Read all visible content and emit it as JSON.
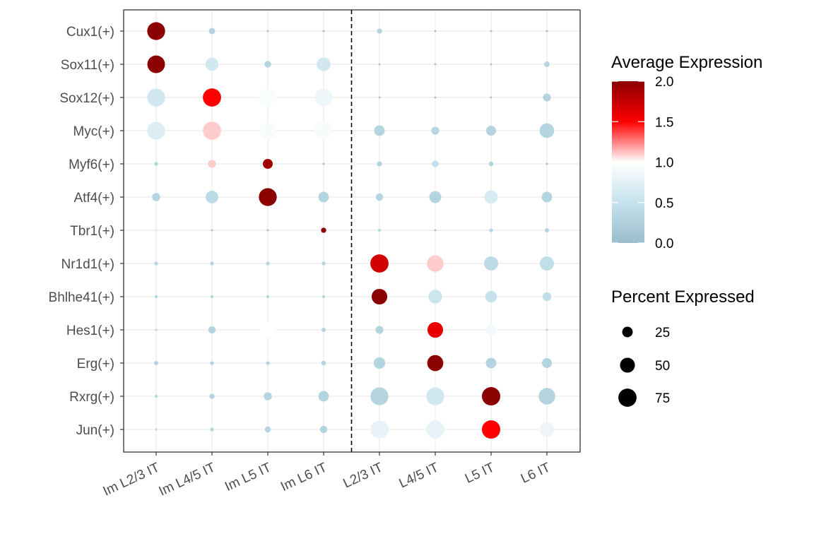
{
  "chart_data": {
    "type": "dotplot",
    "x_categories": [
      "Im L2/3 IT",
      "Im L4/5 IT",
      "Im L5 IT",
      "Im L6 IT",
      "L2/3 IT",
      "L4/5 IT",
      "L5 IT",
      "L6 IT"
    ],
    "y_categories": [
      "Cux1(+)",
      "Sox11(+)",
      "Sox12(+)",
      "Myc(+)",
      "Myf6(+)",
      "Atf4(+)",
      "Tbr1(+)",
      "Nr1d1(+)",
      "Bhlhe41(+)",
      "Hes1(+)",
      "Erg(+)",
      "Rxrg(+)",
      "Jun(+)"
    ],
    "divider_after_index": 3,
    "divider_style": "dashed",
    "grid": true,
    "points": [
      {
        "gene": "Cux1(+)",
        "cluster": "Im L2/3 IT",
        "avg_exp": 2.0,
        "pct": 72
      },
      {
        "gene": "Cux1(+)",
        "cluster": "Im L4/5 IT",
        "avg_exp": 0.3,
        "pct": 9
      },
      {
        "gene": "Cux1(+)",
        "cluster": "Im L5 IT",
        "avg_exp": 0.1,
        "pct": 1
      },
      {
        "gene": "Cux1(+)",
        "cluster": "Im L6 IT",
        "avg_exp": 0.1,
        "pct": 1
      },
      {
        "gene": "Cux1(+)",
        "cluster": "L2/3 IT",
        "avg_exp": 0.3,
        "pct": 6
      },
      {
        "gene": "Cux1(+)",
        "cluster": "L4/5 IT",
        "avg_exp": 0.1,
        "pct": 1
      },
      {
        "gene": "Cux1(+)",
        "cluster": "L5 IT",
        "avg_exp": 0.1,
        "pct": 1
      },
      {
        "gene": "Cux1(+)",
        "cluster": "L6 IT",
        "avg_exp": 0.1,
        "pct": 1
      },
      {
        "gene": "Sox11(+)",
        "cluster": "Im L2/3 IT",
        "avg_exp": 2.0,
        "pct": 70
      },
      {
        "gene": "Sox11(+)",
        "cluster": "Im L4/5 IT",
        "avg_exp": 0.6,
        "pct": 38
      },
      {
        "gene": "Sox11(+)",
        "cluster": "Im L5 IT",
        "avg_exp": 0.3,
        "pct": 10
      },
      {
        "gene": "Sox11(+)",
        "cluster": "Im L6 IT",
        "avg_exp": 0.6,
        "pct": 43
      },
      {
        "gene": "Sox11(+)",
        "cluster": "L2/3 IT",
        "avg_exp": 0.1,
        "pct": 1
      },
      {
        "gene": "Sox11(+)",
        "cluster": "L4/5 IT",
        "avg_exp": 0.1,
        "pct": 1
      },
      {
        "gene": "Sox11(+)",
        "cluster": "L5 IT",
        "avg_exp": 0.1,
        "pct": 1
      },
      {
        "gene": "Sox11(+)",
        "cluster": "L6 IT",
        "avg_exp": 0.3,
        "pct": 7
      },
      {
        "gene": "Sox12(+)",
        "cluster": "Im L2/3 IT",
        "avg_exp": 0.6,
        "pct": 72
      },
      {
        "gene": "Sox12(+)",
        "cluster": "Im L4/5 IT",
        "avg_exp": 1.5,
        "pct": 75
      },
      {
        "gene": "Sox12(+)",
        "cluster": "Im L5 IT",
        "avg_exp": 0.95,
        "pct": 65
      },
      {
        "gene": "Sox12(+)",
        "cluster": "Im L6 IT",
        "avg_exp": 0.85,
        "pct": 70
      },
      {
        "gene": "Sox12(+)",
        "cluster": "L2/3 IT",
        "avg_exp": 0.1,
        "pct": 1
      },
      {
        "gene": "Sox12(+)",
        "cluster": "L4/5 IT",
        "avg_exp": 0.1,
        "pct": 1
      },
      {
        "gene": "Sox12(+)",
        "cluster": "L5 IT",
        "avg_exp": 0.1,
        "pct": 1
      },
      {
        "gene": "Sox12(+)",
        "cluster": "L6 IT",
        "avg_exp": 0.3,
        "pct": 14
      },
      {
        "gene": "Myc(+)",
        "cluster": "Im L2/3 IT",
        "avg_exp": 0.7,
        "pct": 72
      },
      {
        "gene": "Myc(+)",
        "cluster": "Im L4/5 IT",
        "avg_exp": 1.1,
        "pct": 75
      },
      {
        "gene": "Myc(+)",
        "cluster": "Im L5 IT",
        "avg_exp": 0.93,
        "pct": 65
      },
      {
        "gene": "Myc(+)",
        "cluster": "Im L6 IT",
        "avg_exp": 0.93,
        "pct": 70
      },
      {
        "gene": "Myc(+)",
        "cluster": "L2/3 IT",
        "avg_exp": 0.3,
        "pct": 25
      },
      {
        "gene": "Myc(+)",
        "cluster": "L4/5 IT",
        "avg_exp": 0.3,
        "pct": 14
      },
      {
        "gene": "Myc(+)",
        "cluster": "L5 IT",
        "avg_exp": 0.3,
        "pct": 22
      },
      {
        "gene": "Myc(+)",
        "cluster": "L6 IT",
        "avg_exp": 0.3,
        "pct": 48
      },
      {
        "gene": "Myf6(+)",
        "cluster": "Im L2/3 IT",
        "avg_exp": 0.3,
        "pct": 3
      },
      {
        "gene": "Myf6(+)",
        "cluster": "Im L4/5 IT",
        "avg_exp": 1.1,
        "pct": 14
      },
      {
        "gene": "Myf6(+)",
        "cluster": "Im L5 IT",
        "avg_exp": 1.9,
        "pct": 22
      },
      {
        "gene": "Myf6(+)",
        "cluster": "Im L6 IT",
        "avg_exp": 0.1,
        "pct": 1
      },
      {
        "gene": "Myf6(+)",
        "cluster": "L2/3 IT",
        "avg_exp": 0.3,
        "pct": 6
      },
      {
        "gene": "Myf6(+)",
        "cluster": "L4/5 IT",
        "avg_exp": 0.5,
        "pct": 10
      },
      {
        "gene": "Myf6(+)",
        "cluster": "L5 IT",
        "avg_exp": 0.3,
        "pct": 5
      },
      {
        "gene": "Myf6(+)",
        "cluster": "L6 IT",
        "avg_exp": 0.1,
        "pct": 1
      },
      {
        "gene": "Atf4(+)",
        "cluster": "Im L2/3 IT",
        "avg_exp": 0.3,
        "pct": 15
      },
      {
        "gene": "Atf4(+)",
        "cluster": "Im L4/5 IT",
        "avg_exp": 0.4,
        "pct": 36
      },
      {
        "gene": "Atf4(+)",
        "cluster": "Im L5 IT",
        "avg_exp": 2.0,
        "pct": 72
      },
      {
        "gene": "Atf4(+)",
        "cluster": "Im L6 IT",
        "avg_exp": 0.3,
        "pct": 25
      },
      {
        "gene": "Atf4(+)",
        "cluster": "L2/3 IT",
        "avg_exp": 0.3,
        "pct": 12
      },
      {
        "gene": "Atf4(+)",
        "cluster": "L4/5 IT",
        "avg_exp": 0.3,
        "pct": 32
      },
      {
        "gene": "Atf4(+)",
        "cluster": "L5 IT",
        "avg_exp": 0.65,
        "pct": 40
      },
      {
        "gene": "Atf4(+)",
        "cluster": "L6 IT",
        "avg_exp": 0.3,
        "pct": 25
      },
      {
        "gene": "Tbr1(+)",
        "cluster": "Im L2/3 IT",
        "avg_exp": 0.6,
        "pct": 1
      },
      {
        "gene": "Tbr1(+)",
        "cluster": "Im L4/5 IT",
        "avg_exp": 0.1,
        "pct": 1
      },
      {
        "gene": "Tbr1(+)",
        "cluster": "Im L5 IT",
        "avg_exp": 0.1,
        "pct": 1
      },
      {
        "gene": "Tbr1(+)",
        "cluster": "Im L6 IT",
        "avg_exp": 2.0,
        "pct": 6
      },
      {
        "gene": "Tbr1(+)",
        "cluster": "L2/3 IT",
        "avg_exp": 0.3,
        "pct": 2
      },
      {
        "gene": "Tbr1(+)",
        "cluster": "L4/5 IT",
        "avg_exp": 0.1,
        "pct": 1
      },
      {
        "gene": "Tbr1(+)",
        "cluster": "L5 IT",
        "avg_exp": 0.3,
        "pct": 3
      },
      {
        "gene": "Tbr1(+)",
        "cluster": "L6 IT",
        "avg_exp": 0.3,
        "pct": 4
      },
      {
        "gene": "Nr1d1(+)",
        "cluster": "Im L2/3 IT",
        "avg_exp": 0.3,
        "pct": 3
      },
      {
        "gene": "Nr1d1(+)",
        "cluster": "Im L4/5 IT",
        "avg_exp": 0.3,
        "pct": 3
      },
      {
        "gene": "Nr1d1(+)",
        "cluster": "Im L5 IT",
        "avg_exp": 0.3,
        "pct": 3
      },
      {
        "gene": "Nr1d1(+)",
        "cluster": "Im L6 IT",
        "avg_exp": 0.3,
        "pct": 3
      },
      {
        "gene": "Nr1d1(+)",
        "cluster": "L2/3 IT",
        "avg_exp": 1.7,
        "pct": 75
      },
      {
        "gene": "Nr1d1(+)",
        "cluster": "L4/5 IT",
        "avg_exp": 1.1,
        "pct": 62
      },
      {
        "gene": "Nr1d1(+)",
        "cluster": "L5 IT",
        "avg_exp": 0.4,
        "pct": 45
      },
      {
        "gene": "Nr1d1(+)",
        "cluster": "L6 IT",
        "avg_exp": 0.45,
        "pct": 45
      },
      {
        "gene": "Bhlhe41(+)",
        "cluster": "Im L2/3 IT",
        "avg_exp": 0.3,
        "pct": 2
      },
      {
        "gene": "Bhlhe41(+)",
        "cluster": "Im L4/5 IT",
        "avg_exp": 0.3,
        "pct": 2
      },
      {
        "gene": "Bhlhe41(+)",
        "cluster": "Im L5 IT",
        "avg_exp": 0.3,
        "pct": 2
      },
      {
        "gene": "Bhlhe41(+)",
        "cluster": "Im L6 IT",
        "avg_exp": 0.3,
        "pct": 2
      },
      {
        "gene": "Bhlhe41(+)",
        "cluster": "L2/3 IT",
        "avg_exp": 2.0,
        "pct": 55
      },
      {
        "gene": "Bhlhe41(+)",
        "cluster": "L4/5 IT",
        "avg_exp": 0.55,
        "pct": 42
      },
      {
        "gene": "Bhlhe41(+)",
        "cluster": "L5 IT",
        "avg_exp": 0.5,
        "pct": 30
      },
      {
        "gene": "Bhlhe41(+)",
        "cluster": "L6 IT",
        "avg_exp": 0.45,
        "pct": 17
      },
      {
        "gene": "Hes1(+)",
        "cluster": "Im L2/3 IT",
        "avg_exp": 0.3,
        "pct": 1
      },
      {
        "gene": "Hes1(+)",
        "cluster": "Im L4/5 IT",
        "avg_exp": 0.3,
        "pct": 12
      },
      {
        "gene": "Hes1(+)",
        "cluster": "Im L5 IT",
        "avg_exp": 1.0,
        "pct": 55
      },
      {
        "gene": "Hes1(+)",
        "cluster": "Im L6 IT",
        "avg_exp": 0.3,
        "pct": 4
      },
      {
        "gene": "Hes1(+)",
        "cluster": "L2/3 IT",
        "avg_exp": 0.3,
        "pct": 14
      },
      {
        "gene": "Hes1(+)",
        "cluster": "L4/5 IT",
        "avg_exp": 1.6,
        "pct": 55
      },
      {
        "gene": "Hes1(+)",
        "cluster": "L5 IT",
        "avg_exp": 0.9,
        "pct": 25
      },
      {
        "gene": "Hes1(+)",
        "cluster": "L6 IT",
        "avg_exp": 0.3,
        "pct": 1
      },
      {
        "gene": "Erg(+)",
        "cluster": "Im L2/3 IT",
        "avg_exp": 0.3,
        "pct": 4
      },
      {
        "gene": "Erg(+)",
        "cluster": "Im L4/5 IT",
        "avg_exp": 0.3,
        "pct": 3
      },
      {
        "gene": "Erg(+)",
        "cluster": "Im L5 IT",
        "avg_exp": 0.3,
        "pct": 3
      },
      {
        "gene": "Erg(+)",
        "cluster": "Im L6 IT",
        "avg_exp": 0.3,
        "pct": 5
      },
      {
        "gene": "Erg(+)",
        "cluster": "L2/3 IT",
        "avg_exp": 0.3,
        "pct": 30
      },
      {
        "gene": "Erg(+)",
        "cluster": "L4/5 IT",
        "avg_exp": 2.0,
        "pct": 58
      },
      {
        "gene": "Erg(+)",
        "cluster": "L5 IT",
        "avg_exp": 0.3,
        "pct": 25
      },
      {
        "gene": "Erg(+)",
        "cluster": "L6 IT",
        "avg_exp": 0.3,
        "pct": 22
      },
      {
        "gene": "Rxrg(+)",
        "cluster": "Im L2/3 IT",
        "avg_exp": 0.3,
        "pct": 2
      },
      {
        "gene": "Rxrg(+)",
        "cluster": "Im L4/5 IT",
        "avg_exp": 0.3,
        "pct": 6
      },
      {
        "gene": "Rxrg(+)",
        "cluster": "Im L5 IT",
        "avg_exp": 0.3,
        "pct": 15
      },
      {
        "gene": "Rxrg(+)",
        "cluster": "Im L6 IT",
        "avg_exp": 0.3,
        "pct": 25
      },
      {
        "gene": "Rxrg(+)",
        "cluster": "L2/3 IT",
        "avg_exp": 0.3,
        "pct": 72
      },
      {
        "gene": "Rxrg(+)",
        "cluster": "L4/5 IT",
        "avg_exp": 0.6,
        "pct": 72
      },
      {
        "gene": "Rxrg(+)",
        "cluster": "L5 IT",
        "avg_exp": 2.0,
        "pct": 76
      },
      {
        "gene": "Rxrg(+)",
        "cluster": "L6 IT",
        "avg_exp": 0.3,
        "pct": 62
      },
      {
        "gene": "Jun(+)",
        "cluster": "Im L2/3 IT",
        "avg_exp": 0.3,
        "pct": 1
      },
      {
        "gene": "Jun(+)",
        "cluster": "Im L4/5 IT",
        "avg_exp": 0.3,
        "pct": 3
      },
      {
        "gene": "Jun(+)",
        "cluster": "Im L5 IT",
        "avg_exp": 0.3,
        "pct": 8
      },
      {
        "gene": "Jun(+)",
        "cluster": "Im L6 IT",
        "avg_exp": 0.3,
        "pct": 12
      },
      {
        "gene": "Jun(+)",
        "cluster": "L2/3 IT",
        "avg_exp": 0.8,
        "pct": 72
      },
      {
        "gene": "Jun(+)",
        "cluster": "L4/5 IT",
        "avg_exp": 0.8,
        "pct": 72
      },
      {
        "gene": "Jun(+)",
        "cluster": "L5 IT",
        "avg_exp": 1.5,
        "pct": 76
      },
      {
        "gene": "Jun(+)",
        "cluster": "L6 IT",
        "avg_exp": 0.85,
        "pct": 50
      }
    ],
    "color_legend": {
      "title": "Average Expression",
      "range": [
        0.0,
        2.0
      ],
      "ticks": [
        "0.0",
        "0.5",
        "1.0",
        "1.5",
        "2.0"
      ],
      "tick_values": [
        0.0,
        0.5,
        1.0,
        1.5,
        2.0
      ],
      "stops": [
        {
          "value": 0.0,
          "color": "#9ABECC"
        },
        {
          "value": 0.5,
          "color": "#C5E2EC"
        },
        {
          "value": 1.0,
          "color": "#FFFFFF"
        },
        {
          "value": 1.5,
          "color": "#FF0000"
        },
        {
          "value": 2.0,
          "color": "#8B0000"
        }
      ]
    },
    "size_legend": {
      "title": "Percent Expressed",
      "values": [
        25,
        50,
        75
      ],
      "labels": [
        "25",
        "50",
        "75"
      ],
      "color": "#000000"
    }
  }
}
